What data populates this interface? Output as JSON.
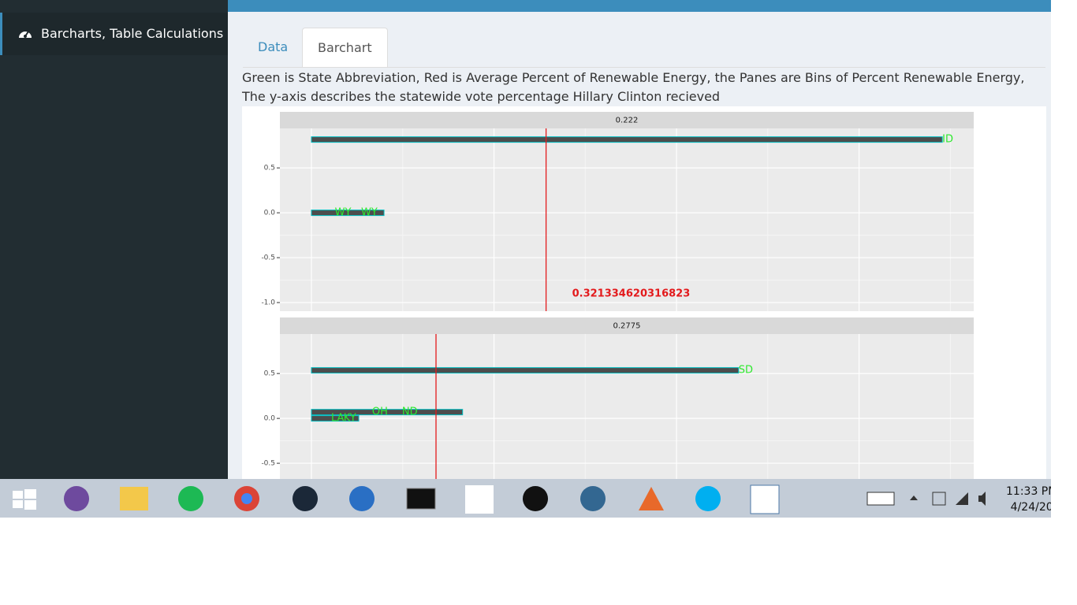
{
  "sidebar": {
    "menu_item": "Barcharts, Table Calculations"
  },
  "tabs": [
    "Data",
    "Barchart"
  ],
  "description": "Green is State Abbreviation, Red is Average Percent of Renewable Energy, the Panes are Bins of Percent Renewable Energy, The y-axis describes the statewide vote percentage Hillary Clinton recieved",
  "plot": {
    "panels": [
      {
        "type": "bar",
        "title": "0.222",
        "xlim": [
          -0.0432,
          0.907
        ],
        "xticks": [
          0,
          0.25,
          0.5,
          0.75
        ],
        "ylim": [
          -1.096,
          0.94
        ],
        "yticks": [
          0.5,
          {
            "value": 0,
            "label": "0.0"
          },
          -0.5,
          {
            "value": -1,
            "label": "-1.0"
          }
        ],
        "bars": [
          {
            "x": 0.864,
            "y": 0.816
          },
          {
            "x": 0.0994,
            "y": 0
          }
        ],
        "labels": [
          {
            "text": "ID",
            "x": 0.864,
            "y": 0.816
          },
          {
            "text": "WY",
            "x": 0.032,
            "y": 0
          },
          {
            "text": "WY",
            "x": 0.068,
            "y": 0
          }
        ],
        "mean": 0.321334620316823,
        "mean_label": true
      },
      {
        "type": "bar",
        "title": "0.2775",
        "xlim": [
          -0.0432,
          0.907
        ],
        "xticks": [
          0,
          0.25,
          0.5,
          0.75
        ],
        "ylim": [
          -1.096,
          0.94
        ],
        "yticks": [
          0.5,
          {
            "value": 0,
            "label": "0.0"
          },
          -0.5
        ],
        "bars": [
          {
            "x": 0.585,
            "y": 0.535
          },
          {
            "x": 0.207,
            "y": 0.07
          },
          {
            "x": 0.0648,
            "y": 0
          }
        ],
        "labels": [
          {
            "text": "SD",
            "x": 0.585,
            "y": 0.535
          },
          {
            "text": "OH",
            "x": 0.083,
            "y": 0.07
          },
          {
            "text": "ND",
            "x": 0.124,
            "y": 0.07
          },
          {
            "text": "LA",
            "x": 0.027,
            "y": 0
          },
          {
            "text": "KY",
            "x": 0.044,
            "y": 0
          }
        ],
        "mean": 0.1706,
        "mean_label": false
      }
    ]
  },
  "taskbar": {
    "time": "11:33 PM",
    "date": "4/24/20"
  }
}
